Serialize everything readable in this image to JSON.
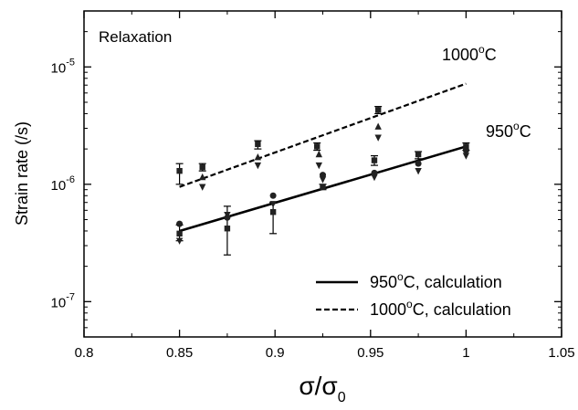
{
  "chart_data": {
    "type": "scatter",
    "title": "",
    "xlabel": "σ/σ",
    "xlabel_sub": "0",
    "ylabel": "Strain rate (/s)",
    "annotation": "Relaxation",
    "x_scale": "linear",
    "y_scale": "log",
    "xlim": [
      0.8,
      1.05
    ],
    "ylim": [
      5e-08,
      3e-05
    ],
    "x_ticks": [
      {
        "value": 0.8,
        "label": "0.8"
      },
      {
        "value": 0.85,
        "label": "0.85"
      },
      {
        "value": 0.9,
        "label": "0.9"
      },
      {
        "value": 0.95,
        "label": "0.95"
      },
      {
        "value": 1.0,
        "label": "1"
      },
      {
        "value": 1.05,
        "label": "1.05"
      }
    ],
    "y_ticks": [
      {
        "value": 1e-07,
        "base": "10",
        "exp": "-7"
      },
      {
        "value": 1e-06,
        "base": "10",
        "exp": "-6"
      },
      {
        "value": 1e-05,
        "base": "10",
        "exp": "-5"
      }
    ],
    "grid": false,
    "legend_position": "bottom-right",
    "legend": [
      {
        "label_pre": "950",
        "sup": "o",
        "label_post": "C, calculation",
        "style": "solid"
      },
      {
        "label_pre": "1000",
        "sup": "o",
        "label_post": "C, calculation",
        "style": "dashed"
      }
    ],
    "curve_labels": [
      {
        "pre": "1000",
        "sup": "o",
        "post": "C",
        "series": "1000C"
      },
      {
        "pre": "950",
        "sup": "o",
        "post": "C",
        "series": "950C"
      }
    ],
    "lines": [
      {
        "series": "950C",
        "style": "solid",
        "x": [
          0.85,
          1.0
        ],
        "y": [
          4e-07,
          2.1e-06
        ]
      },
      {
        "series": "1000C",
        "style": "dashed",
        "x": [
          0.85,
          1.0
        ],
        "y": [
          9.5e-07,
          7.2e-06
        ]
      }
    ],
    "series": [
      {
        "series": "1000C",
        "marker": "square",
        "points": [
          {
            "x": 0.85,
            "y": 1.3e-06,
            "lo": 1e-06,
            "hi": 1.5e-06
          },
          {
            "x": 0.862,
            "y": 1.4e-06,
            "lo": 1.3e-06,
            "hi": 1.5e-06
          },
          {
            "x": 0.891,
            "y": 2.2e-06,
            "lo": 2e-06,
            "hi": 2.35e-06
          },
          {
            "x": 0.922,
            "y": 2.1e-06,
            "lo": 1.95e-06,
            "hi": 2.25e-06
          },
          {
            "x": 0.954,
            "y": 4.3e-06,
            "lo": 4e-06,
            "hi": 4.6e-06
          }
        ]
      },
      {
        "series": "1000C",
        "marker": "triangle-up",
        "points": [
          {
            "x": 0.862,
            "y": 1.15e-06
          },
          {
            "x": 0.891,
            "y": 1.7e-06
          },
          {
            "x": 0.923,
            "y": 1.8e-06
          },
          {
            "x": 0.954,
            "y": 3.1e-06
          }
        ]
      },
      {
        "series": "1000C",
        "marker": "triangle-down",
        "points": [
          {
            "x": 0.862,
            "y": 9.5e-07
          },
          {
            "x": 0.891,
            "y": 1.45e-06
          },
          {
            "x": 0.923,
            "y": 1.45e-06
          },
          {
            "x": 0.954,
            "y": 2.5e-06
          }
        ]
      },
      {
        "series": "950C",
        "marker": "square",
        "points": [
          {
            "x": 0.85,
            "y": 3.8e-07,
            "lo": 3.3e-07,
            "hi": 4.5e-07
          },
          {
            "x": 0.875,
            "y": 4.2e-07,
            "lo": 2.5e-07,
            "hi": 6.5e-07
          },
          {
            "x": 0.899,
            "y": 5.8e-07,
            "lo": 3.8e-07,
            "hi": 7e-07
          },
          {
            "x": 0.925,
            "y": 9.5e-07,
            "lo": 9e-07,
            "hi": 1e-06
          },
          {
            "x": 0.952,
            "y": 1.6e-06,
            "lo": 1.45e-06,
            "hi": 1.75e-06
          },
          {
            "x": 0.975,
            "y": 1.8e-06,
            "lo": 1.65e-06,
            "hi": 1.9e-06
          },
          {
            "x": 1.0,
            "y": 2.1e-06,
            "lo": 1.95e-06,
            "hi": 2.25e-06
          }
        ]
      },
      {
        "series": "950C",
        "marker": "circle",
        "points": [
          {
            "x": 0.85,
            "y": 4.6e-07
          },
          {
            "x": 0.875,
            "y": 5.2e-07
          },
          {
            "x": 0.899,
            "y": 8e-07
          },
          {
            "x": 0.925,
            "y": 1.2e-06
          },
          {
            "x": 0.952,
            "y": 1.25e-06
          },
          {
            "x": 0.975,
            "y": 1.5e-06
          },
          {
            "x": 1.0,
            "y": 1.95e-06
          }
        ]
      },
      {
        "series": "950C",
        "marker": "triangle-down",
        "points": [
          {
            "x": 0.85,
            "y": 3.3e-07
          },
          {
            "x": 0.875,
            "y": 5.5e-07
          },
          {
            "x": 0.899,
            "y": 6.8e-07
          },
          {
            "x": 0.925,
            "y": 1.1e-06
          },
          {
            "x": 0.952,
            "y": 1.15e-06
          },
          {
            "x": 0.975,
            "y": 1.3e-06
          },
          {
            "x": 1.0,
            "y": 1.75e-06
          }
        ]
      }
    ]
  }
}
